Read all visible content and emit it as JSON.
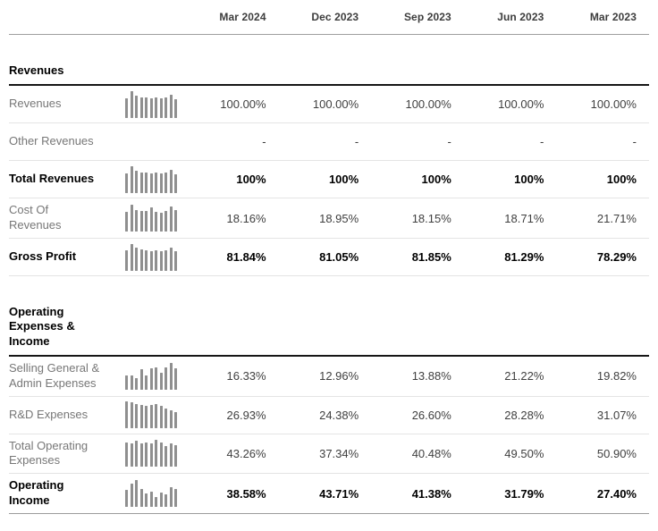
{
  "table": {
    "columns": [
      "Mar 2024",
      "Dec 2023",
      "Sep 2023",
      "Jun 2023",
      "Mar 2023"
    ],
    "sections": [
      {
        "title": "Revenues",
        "rows": [
          {
            "label": "Revenues",
            "bold": false,
            "sparkline": [
              0.74,
              1.0,
              0.84,
              0.78,
              0.76,
              0.72,
              0.78,
              0.72,
              0.78,
              0.88,
              0.7
            ],
            "values": [
              "100.00%",
              "100.00%",
              "100.00%",
              "100.00%",
              "100.00%"
            ]
          },
          {
            "label": "Other Revenues",
            "bold": false,
            "sparkline": null,
            "values": [
              "-",
              "-",
              "-",
              "-",
              "-"
            ]
          },
          {
            "label": "Total Revenues",
            "bold": true,
            "sparkline": [
              0.74,
              1.0,
              0.84,
              0.78,
              0.76,
              0.72,
              0.78,
              0.72,
              0.78,
              0.88,
              0.7
            ],
            "values": [
              "100%",
              "100%",
              "100%",
              "100%",
              "100%"
            ]
          },
          {
            "label": "Cost Of Revenues",
            "bold": false,
            "sparkline": [
              0.72,
              1.0,
              0.8,
              0.78,
              0.78,
              0.9,
              0.72,
              0.7,
              0.78,
              0.92,
              0.8
            ],
            "values": [
              "18.16%",
              "18.95%",
              "18.15%",
              "18.71%",
              "21.71%"
            ]
          },
          {
            "label": "Gross Profit",
            "bold": true,
            "sparkline": [
              0.78,
              1.0,
              0.85,
              0.8,
              0.78,
              0.72,
              0.78,
              0.72,
              0.78,
              0.88,
              0.72
            ],
            "values": [
              "81.84%",
              "81.05%",
              "81.85%",
              "81.29%",
              "78.29%"
            ]
          }
        ]
      },
      {
        "title": "Operating Expenses & Income",
        "rows": [
          {
            "label": "Selling General & Admin Expenses",
            "bold": false,
            "sparkline": [
              0.52,
              0.52,
              0.44,
              0.78,
              0.52,
              0.8,
              0.84,
              0.64,
              0.82,
              1.0,
              0.8
            ],
            "values": [
              "16.33%",
              "12.96%",
              "13.88%",
              "21.22%",
              "19.82%"
            ]
          },
          {
            "label": "R&D Expenses",
            "bold": false,
            "sparkline": [
              1.0,
              0.95,
              0.9,
              0.85,
              0.82,
              0.86,
              0.9,
              0.82,
              0.74,
              0.66,
              0.6
            ],
            "values": [
              "26.93%",
              "24.38%",
              "26.60%",
              "28.28%",
              "31.07%"
            ]
          },
          {
            "label": "Total Operating Expenses",
            "bold": false,
            "sparkline": [
              0.9,
              0.85,
              0.95,
              0.85,
              0.9,
              0.88,
              1.0,
              0.9,
              0.75,
              0.85,
              0.8
            ],
            "values": [
              "43.26%",
              "37.34%",
              "40.48%",
              "49.50%",
              "50.90%"
            ]
          },
          {
            "label": "Operating Income",
            "bold": true,
            "sparkline": [
              0.62,
              0.85,
              1.0,
              0.68,
              0.5,
              0.58,
              0.38,
              0.52,
              0.45,
              0.72,
              0.65
            ],
            "values": [
              "38.58%",
              "43.71%",
              "41.38%",
              "31.79%",
              "27.40%"
            ]
          }
        ]
      }
    ]
  },
  "colors": {
    "bold_text": "#000000",
    "label_text": "#777777",
    "value_text": "#3f3f3f",
    "sparkline_bar": "#8f8f8f",
    "row_divider": "#e4e4e4",
    "section_underline": "#161616",
    "header_underline": "#9f9f9f"
  }
}
